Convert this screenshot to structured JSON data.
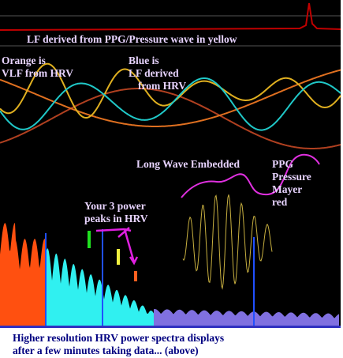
{
  "annotations": {
    "ppg_lf": [
      "LF derived from PPG/Pressure wave in yellow"
    ],
    "orange": [
      "Orange is",
      "VLF from HRV"
    ],
    "blue": [
      "Blue is",
      "LF derived",
      "from  HRV"
    ],
    "long_wave": [
      "Long Wave Embedded"
    ],
    "ppg_mayer": [
      "PPG",
      "Pressure",
      "Mayer",
      "red"
    ],
    "peaks": [
      "Your 3 power",
      "peaks in HRV"
    ]
  },
  "caption": [
    "Higher resolution HRV power spectra displays",
    "after a few minutes taking data... (above)"
  ]
}
